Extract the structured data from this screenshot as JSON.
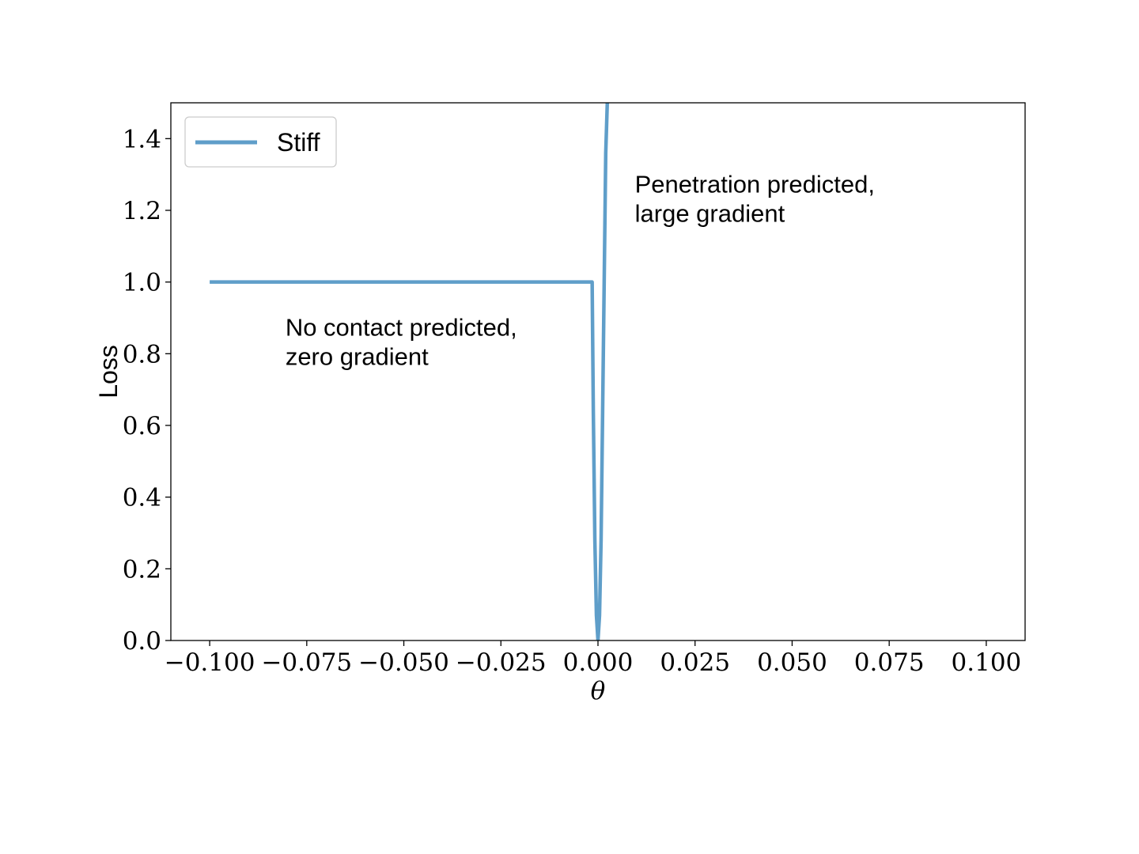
{
  "chart_data": {
    "type": "line",
    "title": "",
    "xlabel": "θ",
    "ylabel": "Loss",
    "xlim": [
      -0.11,
      0.11
    ],
    "ylim": [
      0.0,
      1.5
    ],
    "xticks": [
      -0.1,
      -0.075,
      -0.05,
      -0.025,
      0.0,
      0.025,
      0.05,
      0.075,
      0.1
    ],
    "xtick_labels": [
      "−0.100",
      "−0.075",
      "−0.050",
      "−0.025",
      "0.000",
      "0.025",
      "0.050",
      "0.075",
      "0.100"
    ],
    "yticks": [
      0.0,
      0.2,
      0.4,
      0.6,
      0.8,
      1.0,
      1.2,
      1.4
    ],
    "ytick_labels": [
      "0.0",
      "0.2",
      "0.4",
      "0.6",
      "0.8",
      "1.0",
      "1.2",
      "1.4"
    ],
    "grid": false,
    "legend": {
      "position": "upper-left"
    },
    "series": [
      {
        "name": "Stiff",
        "color": "#5f9ec9",
        "x": [
          -0.1,
          -0.075,
          -0.05,
          -0.025,
          -0.0015,
          -0.0012,
          -0.0008,
          -0.0004,
          0.0,
          0.0004,
          0.0008,
          0.0012,
          0.0016,
          0.002,
          0.0024,
          0.0028
        ],
        "y": [
          1.0,
          1.0,
          1.0,
          1.0,
          1.0,
          0.64,
          0.28,
          0.07,
          0.0,
          0.07,
          0.28,
          0.64,
          1.0,
          1.36,
          1.5,
          1.5
        ]
      }
    ],
    "annotations": [
      {
        "lines": [
          "No contact predicted,",
          "zero gradient"
        ],
        "x": -0.0805,
        "y": 0.85
      },
      {
        "lines": [
          "Penetration predicted,",
          "large gradient"
        ],
        "x": 0.0095,
        "y": 1.25
      }
    ]
  }
}
